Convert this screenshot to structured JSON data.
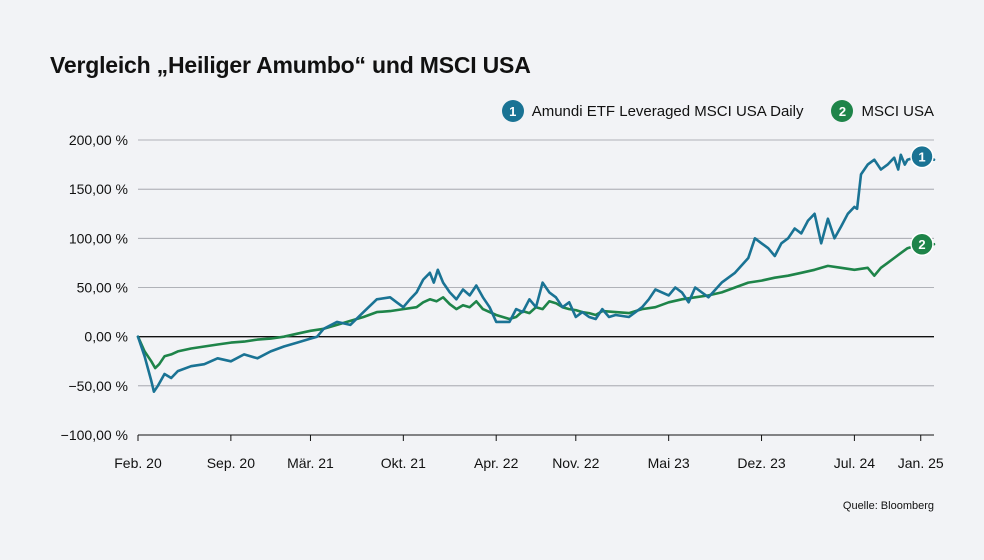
{
  "title": "Vergleich „Heiliger Amumbo“ und MSCI USA",
  "source": "Quelle: Bloomberg",
  "chart_data": {
    "type": "line",
    "ylim": [
      -100,
      200
    ],
    "yticks": [
      -100,
      -50,
      0,
      50,
      100,
      150,
      200
    ],
    "ytick_labels": [
      "−100,00 %",
      "−50,00 %",
      "0,00 %",
      "50,00 %",
      "100,00 %",
      "150,00 %",
      "200,00 %"
    ],
    "xlim": [
      0,
      60
    ],
    "xticks": [
      0,
      7,
      13,
      20,
      27,
      33,
      40,
      47,
      54,
      59
    ],
    "xtick_labels": [
      "Feb. 20",
      "Sep. 20",
      "Mär. 21",
      "Okt. 21",
      "Apr. 22",
      "Nov. 22",
      "Mai 23",
      "Dez. 23",
      "Jul. 24",
      "Jan. 25"
    ],
    "grid": true,
    "legend": "top-right",
    "series": [
      {
        "name": "Amundi ETF Leveraged MSCI USA Daily",
        "badge": "1",
        "color": "#1a7394",
        "x": [
          0,
          0.5,
          1,
          1.2,
          1.5,
          2,
          2.5,
          3,
          4,
          5,
          6,
          7,
          8,
          9,
          10,
          11,
          12,
          13,
          13.5,
          14,
          15,
          16,
          17,
          18,
          19,
          19.5,
          20,
          20.5,
          21,
          21.5,
          22,
          22.3,
          22.6,
          23,
          23.5,
          24,
          24.5,
          25,
          25.5,
          26,
          26.5,
          27,
          28,
          28.5,
          29,
          29.5,
          30,
          30.5,
          31,
          31.5,
          32,
          32.5,
          33,
          33.5,
          34,
          34.5,
          35,
          35.5,
          36,
          37,
          38,
          38.5,
          39,
          40,
          40.5,
          41,
          41.5,
          42,
          43,
          44,
          45,
          46,
          46.5,
          47,
          47.5,
          48,
          48.5,
          49,
          49.5,
          50,
          50.5,
          51,
          51.5,
          52,
          52.5,
          53,
          53.5,
          54,
          54.2,
          54.5,
          55,
          55.5,
          56,
          56.5,
          57,
          57.3,
          57.5,
          57.8,
          58,
          58.5,
          59,
          59.5,
          60
        ],
        "values": [
          0,
          -20,
          -45,
          -56,
          -50,
          -38,
          -42,
          -35,
          -30,
          -28,
          -22,
          -25,
          -18,
          -22,
          -15,
          -10,
          -6,
          -2,
          0,
          8,
          15,
          12,
          25,
          38,
          40,
          35,
          30,
          38,
          45,
          58,
          65,
          55,
          68,
          55,
          45,
          38,
          48,
          42,
          52,
          40,
          30,
          15,
          15,
          28,
          25,
          38,
          30,
          55,
          45,
          40,
          30,
          35,
          20,
          25,
          20,
          18,
          28,
          20,
          22,
          20,
          30,
          38,
          48,
          42,
          50,
          45,
          35,
          50,
          40,
          55,
          65,
          80,
          100,
          95,
          90,
          82,
          95,
          100,
          110,
          105,
          118,
          125,
          95,
          120,
          100,
          112,
          125,
          132,
          130,
          165,
          175,
          180,
          170,
          175,
          182,
          170,
          185,
          175,
          180,
          182,
          178,
          183,
          180
        ]
      },
      {
        "name": "MSCI USA",
        "badge": "2",
        "color": "#1e8449",
        "x": [
          0,
          0.5,
          1,
          1.3,
          1.6,
          2,
          2.5,
          3,
          4,
          5,
          6,
          7,
          8,
          9,
          10,
          11,
          12,
          13,
          14,
          15,
          16,
          17,
          18,
          19,
          20,
          21,
          21.5,
          22,
          22.5,
          23,
          23.5,
          24,
          24.5,
          25,
          25.5,
          26,
          27,
          28,
          28.5,
          29,
          29.5,
          30,
          30.5,
          31,
          31.5,
          32,
          32.5,
          33,
          33.5,
          34,
          34.5,
          35,
          36,
          37,
          38,
          39,
          40,
          41,
          42,
          43,
          44,
          45,
          46,
          47,
          48,
          49,
          50,
          51,
          52,
          53,
          54,
          55,
          55.5,
          56,
          56.5,
          57,
          57.5,
          58,
          58.5,
          59,
          59.5,
          60
        ],
        "values": [
          0,
          -15,
          -25,
          -32,
          -28,
          -20,
          -18,
          -15,
          -12,
          -10,
          -8,
          -6,
          -5,
          -3,
          -2,
          0,
          3,
          6,
          8,
          12,
          16,
          20,
          25,
          26,
          28,
          30,
          35,
          38,
          36,
          40,
          33,
          28,
          32,
          30,
          36,
          28,
          22,
          18,
          20,
          26,
          24,
          30,
          28,
          36,
          34,
          30,
          28,
          27,
          25,
          24,
          22,
          26,
          25,
          24,
          28,
          30,
          35,
          38,
          40,
          42,
          45,
          50,
          55,
          57,
          60,
          62,
          65,
          68,
          72,
          70,
          68,
          70,
          62,
          70,
          75,
          80,
          85,
          90,
          92,
          95,
          93,
          94
        ]
      }
    ]
  }
}
